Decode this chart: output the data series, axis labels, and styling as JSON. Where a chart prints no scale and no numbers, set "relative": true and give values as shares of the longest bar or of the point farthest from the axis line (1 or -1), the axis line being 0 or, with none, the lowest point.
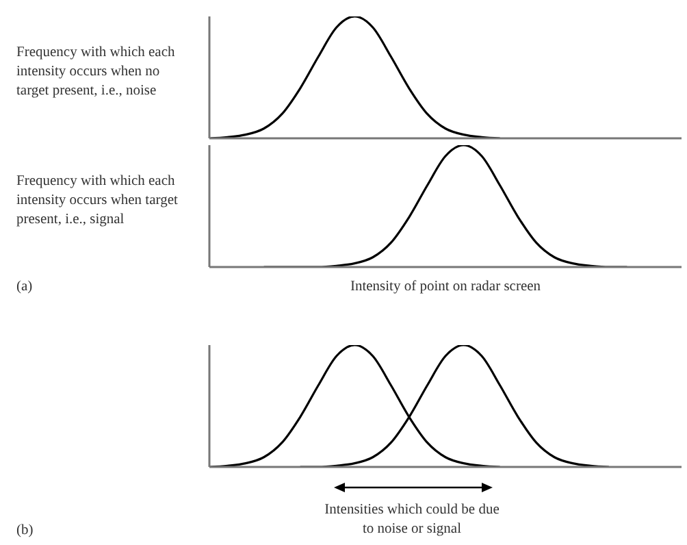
{
  "chart_data": [
    {
      "type": "line",
      "relative": true,
      "ylabel": "Frequency with which each intensity occurs when no target present, i.e., noise",
      "categories": [
        null,
        null,
        null,
        null,
        null,
        null,
        null,
        null,
        null,
        null,
        null,
        null,
        null,
        null,
        null,
        null,
        null,
        null,
        null,
        null,
        null,
        null,
        null,
        null,
        null,
        null,
        null
      ],
      "series": [
        {
          "color": "#000000",
          "values": [
            0,
            0.01,
            0.03,
            0.08,
            0.2,
            0.41,
            0.67,
            0.91,
            1,
            0.91,
            0.67,
            0.41,
            0.2,
            0.08,
            0.03,
            0.01,
            0,
            null,
            null,
            null,
            null,
            null,
            null,
            null,
            null,
            null,
            null
          ]
        }
      ]
    },
    {
      "type": "line",
      "relative": true,
      "ylabel": "Frequency with which each intensity occurs when target present, i.e., signal",
      "xlabel": "Intensity of point on radar screen",
      "annotations": [
        "(a)"
      ],
      "categories": [
        null,
        null,
        null,
        null,
        null,
        null,
        null,
        null,
        null,
        null,
        null,
        null,
        null,
        null,
        null,
        null,
        null,
        null,
        null,
        null,
        null,
        null,
        null,
        null,
        null,
        null,
        null
      ],
      "series": [
        {
          "color": "#000000",
          "values": [
            null,
            null,
            null,
            0,
            0,
            0,
            0,
            0.01,
            0.03,
            0.08,
            0.2,
            0.41,
            0.67,
            0.91,
            1,
            0.91,
            0.67,
            0.41,
            0.2,
            0.08,
            0.03,
            0.01,
            0,
            0,
            null,
            null,
            null
          ]
        }
      ]
    },
    {
      "type": "line",
      "relative": true,
      "annotations": [
        "(b)",
        "Intensities which could be due to noise or signal"
      ],
      "categories": [
        null,
        null,
        null,
        null,
        null,
        null,
        null,
        null,
        null,
        null,
        null,
        null,
        null,
        null,
        null,
        null,
        null,
        null,
        null,
        null,
        null,
        null,
        null,
        null,
        null,
        null,
        null
      ],
      "series": [
        {
          "color": "#000000",
          "values": [
            0,
            0.01,
            0.03,
            0.08,
            0.2,
            0.41,
            0.67,
            0.91,
            1,
            0.91,
            0.67,
            0.41,
            0.2,
            0.08,
            0.03,
            0.01,
            0,
            null,
            null,
            null,
            null,
            null,
            null,
            null,
            null,
            null,
            null
          ]
        },
        {
          "color": "#000000",
          "values": [
            null,
            null,
            null,
            null,
            null,
            0,
            0,
            0.01,
            0.03,
            0.08,
            0.2,
            0.41,
            0.67,
            0.91,
            1,
            0.91,
            0.67,
            0.41,
            0.2,
            0.08,
            0.03,
            0.01,
            0,
            null,
            null,
            null,
            null
          ]
        }
      ]
    }
  ]
}
